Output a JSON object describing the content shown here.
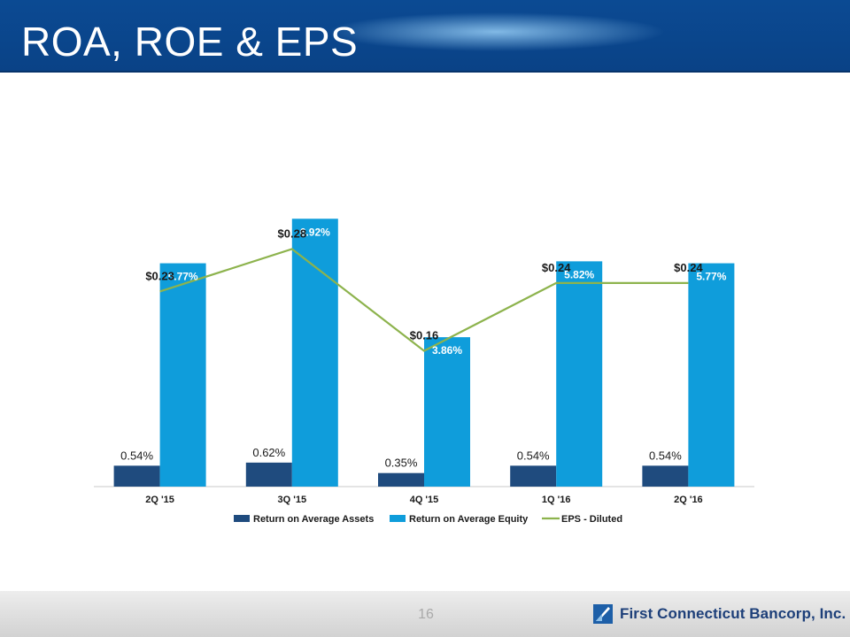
{
  "slide": {
    "title": "ROA, ROE & EPS"
  },
  "footer": {
    "page_number": "16",
    "company": "First Connecticut Bancorp, Inc."
  },
  "colors": {
    "roa": "#1f4b7e",
    "roe": "#0f9ddb",
    "eps": "#8db34d",
    "header": "#0b4a93"
  },
  "chart_data": {
    "type": "bar",
    "title": "",
    "xlabel": "",
    "ylabel": "",
    "categories": [
      "2Q '15",
      "3Q '15",
      "4Q '15",
      "1Q '16",
      "2Q '16"
    ],
    "series": [
      {
        "name": "Return on Average Assets",
        "type": "bar",
        "values": [
          0.54,
          0.62,
          0.35,
          0.54,
          0.54
        ],
        "labels": [
          "0.54%",
          "0.62%",
          "0.35%",
          "0.54%",
          "0.54%"
        ]
      },
      {
        "name": "Return on Average Equity",
        "type": "bar",
        "values": [
          5.77,
          6.92,
          3.86,
          5.82,
          5.77
        ],
        "labels": [
          "5.77%",
          "6.92%",
          "3.86%",
          "5.82%",
          "5.77%"
        ]
      },
      {
        "name": "EPS - Diluted",
        "type": "line",
        "values": [
          0.23,
          0.28,
          0.16,
          0.24,
          0.24
        ],
        "labels": [
          "$0.23",
          "$0.28",
          "$0.16",
          "$0.24",
          "$0.24"
        ]
      }
    ],
    "ylim_bars": [
      0,
      8
    ],
    "ylim_eps": [
      0,
      0.365
    ],
    "grid": false,
    "legend": "bottom"
  }
}
